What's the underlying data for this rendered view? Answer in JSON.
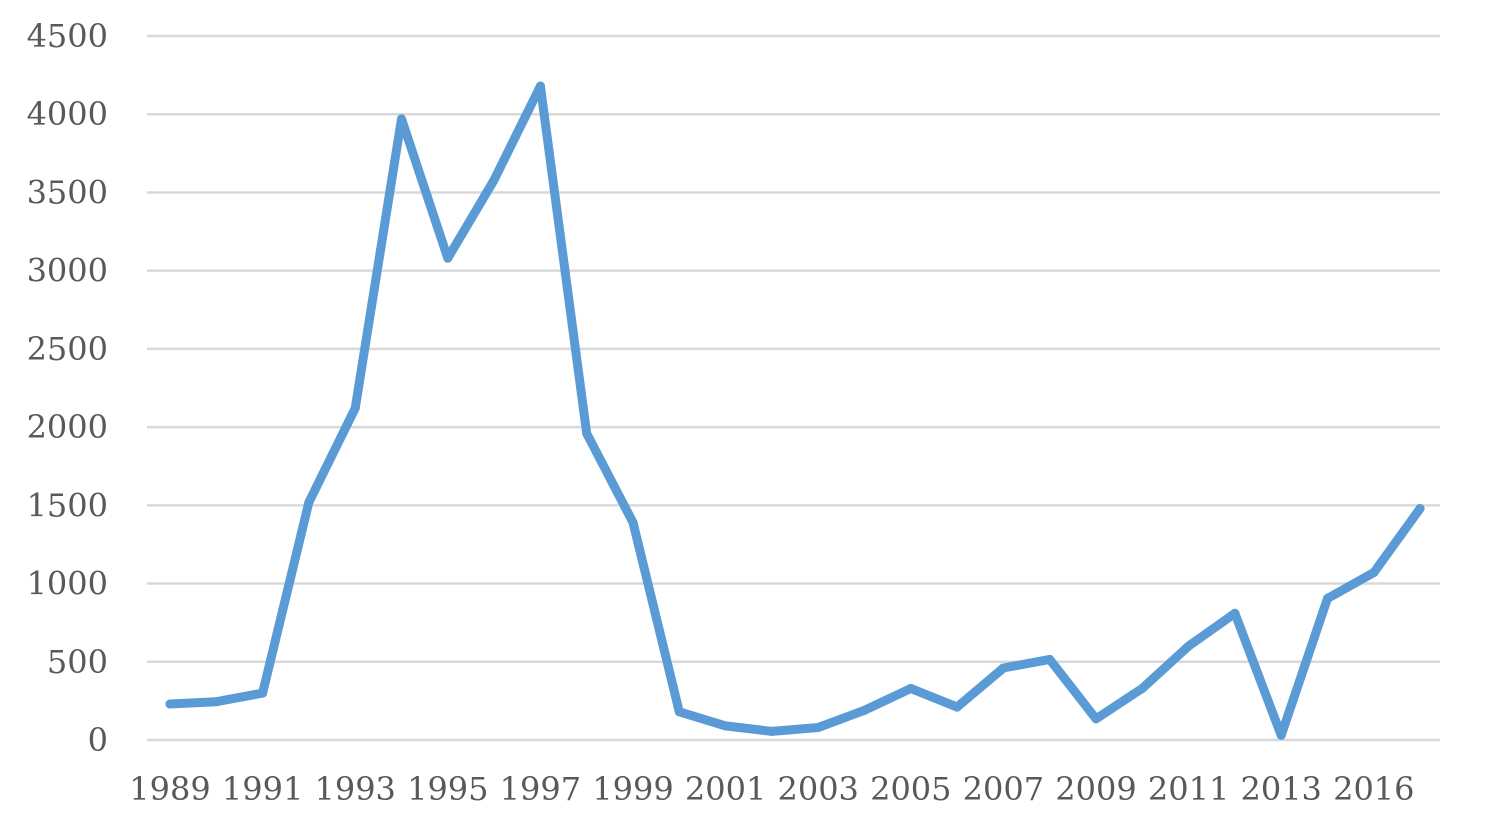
{
  "chart_data": {
    "type": "line",
    "title": "",
    "xlabel": "",
    "ylabel": "",
    "ylim": [
      0,
      4500
    ],
    "yticks": [
      0,
      500,
      1000,
      1500,
      2000,
      2500,
      3000,
      3500,
      4000,
      4500
    ],
    "grid": true,
    "legend": "none",
    "x": [
      "1989",
      "1990",
      "1991",
      "1992",
      "1993",
      "1994",
      "1995",
      "1996",
      "1997",
      "1998",
      "1999",
      "2000",
      "2001",
      "2002",
      "2003",
      "2004",
      "2005",
      "2006",
      "2007",
      "2008",
      "2009",
      "2010",
      "2011",
      "2012",
      "2013",
      "2014",
      "2016",
      "2017"
    ],
    "x_tick_labels": [
      "1989",
      "1991",
      "1993",
      "1995",
      "1997",
      "1999",
      "2001",
      "2003",
      "2005",
      "2007",
      "2009",
      "2011",
      "2013",
      "2016"
    ],
    "series": [
      {
        "color": "#5b9bd5",
        "values": [
          230,
          245,
          300,
          1520,
          2120,
          3970,
          3080,
          3580,
          4180,
          1960,
          1390,
          180,
          90,
          55,
          80,
          190,
          330,
          210,
          460,
          515,
          135,
          330,
          600,
          810,
          30,
          905,
          1070,
          1480
        ]
      }
    ],
    "colors": {
      "grid": "#d9d9d9",
      "tick_text": "#595959"
    }
  }
}
